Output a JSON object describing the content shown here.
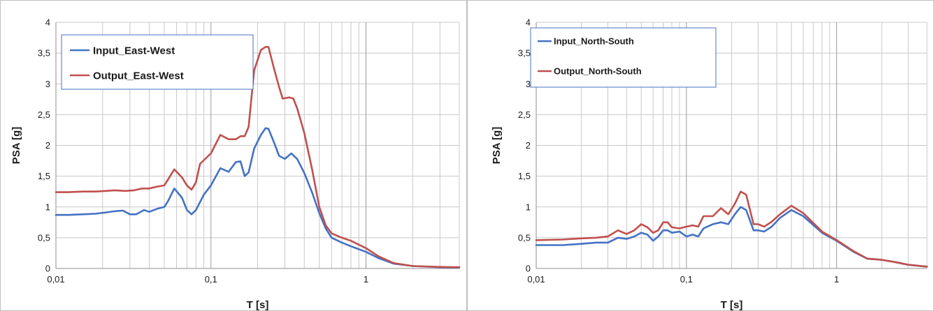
{
  "chart_data": [
    {
      "type": "line",
      "xlabel": "T [s]",
      "ylabel": "PSA [g]",
      "xscale": "log",
      "xlim": [
        0.01,
        4
      ],
      "ylim": [
        0,
        4
      ],
      "x_ticks": [
        {
          "value": 0.01,
          "label": "0,01"
        },
        {
          "value": 0.1,
          "label": "0,1"
        },
        {
          "value": 1,
          "label": "1"
        }
      ],
      "y_ticks": [
        {
          "value": 0,
          "label": "0"
        },
        {
          "value": 0.5,
          "label": "0,5"
        },
        {
          "value": 1,
          "label": "1"
        },
        {
          "value": 1.5,
          "label": "1,5"
        },
        {
          "value": 2,
          "label": "2"
        },
        {
          "value": 2.5,
          "label": "2,5"
        },
        {
          "value": 3,
          "label": "3"
        },
        {
          "value": 3.5,
          "label": "3,5"
        },
        {
          "value": 4,
          "label": "4"
        }
      ],
      "grid": true,
      "legend_position": "top-left",
      "series": [
        {
          "name": "Input_East-West",
          "color": "#4472c4",
          "points": [
            [
              0.01,
              0.87
            ],
            [
              0.012,
              0.87
            ],
            [
              0.015,
              0.88
            ],
            [
              0.018,
              0.89
            ],
            [
              0.021,
              0.91
            ],
            [
              0.024,
              0.93
            ],
            [
              0.027,
              0.94
            ],
            [
              0.03,
              0.88
            ],
            [
              0.033,
              0.88
            ],
            [
              0.037,
              0.95
            ],
            [
              0.04,
              0.92
            ],
            [
              0.045,
              0.97
            ],
            [
              0.05,
              1.0
            ],
            [
              0.053,
              1.1
            ],
            [
              0.058,
              1.3
            ],
            [
              0.065,
              1.15
            ],
            [
              0.07,
              0.95
            ],
            [
              0.075,
              0.88
            ],
            [
              0.08,
              0.95
            ],
            [
              0.09,
              1.2
            ],
            [
              0.1,
              1.35
            ],
            [
              0.115,
              1.63
            ],
            [
              0.13,
              1.57
            ],
            [
              0.145,
              1.73
            ],
            [
              0.155,
              1.74
            ],
            [
              0.165,
              1.5
            ],
            [
              0.175,
              1.56
            ],
            [
              0.19,
              1.95
            ],
            [
              0.21,
              2.17
            ],
            [
              0.225,
              2.28
            ],
            [
              0.235,
              2.27
            ],
            [
              0.255,
              2.05
            ],
            [
              0.275,
              1.83
            ],
            [
              0.3,
              1.78
            ],
            [
              0.33,
              1.87
            ],
            [
              0.36,
              1.78
            ],
            [
              0.4,
              1.55
            ],
            [
              0.45,
              1.23
            ],
            [
              0.5,
              0.9
            ],
            [
              0.55,
              0.65
            ],
            [
              0.6,
              0.5
            ],
            [
              0.7,
              0.42
            ],
            [
              0.8,
              0.36
            ],
            [
              1.0,
              0.27
            ],
            [
              1.2,
              0.17
            ],
            [
              1.5,
              0.08
            ],
            [
              2.0,
              0.04
            ],
            [
              3.0,
              0.02
            ],
            [
              4.0,
              0.015
            ]
          ]
        },
        {
          "name": "Output_East-West",
          "color": "#c0504d",
          "points": [
            [
              0.01,
              1.24
            ],
            [
              0.012,
              1.24
            ],
            [
              0.015,
              1.25
            ],
            [
              0.018,
              1.25
            ],
            [
              0.021,
              1.26
            ],
            [
              0.024,
              1.27
            ],
            [
              0.028,
              1.26
            ],
            [
              0.032,
              1.27
            ],
            [
              0.036,
              1.3
            ],
            [
              0.04,
              1.3
            ],
            [
              0.045,
              1.33
            ],
            [
              0.05,
              1.35
            ],
            [
              0.053,
              1.45
            ],
            [
              0.058,
              1.61
            ],
            [
              0.065,
              1.48
            ],
            [
              0.07,
              1.35
            ],
            [
              0.075,
              1.28
            ],
            [
              0.08,
              1.4
            ],
            [
              0.085,
              1.7
            ],
            [
              0.1,
              1.87
            ],
            [
              0.115,
              2.17
            ],
            [
              0.13,
              2.1
            ],
            [
              0.145,
              2.1
            ],
            [
              0.155,
              2.15
            ],
            [
              0.165,
              2.15
            ],
            [
              0.175,
              2.3
            ],
            [
              0.19,
              3.22
            ],
            [
              0.21,
              3.55
            ],
            [
              0.225,
              3.6
            ],
            [
              0.235,
              3.6
            ],
            [
              0.255,
              3.25
            ],
            [
              0.275,
              2.95
            ],
            [
              0.29,
              2.76
            ],
            [
              0.32,
              2.78
            ],
            [
              0.34,
              2.76
            ],
            [
              0.36,
              2.6
            ],
            [
              0.4,
              2.2
            ],
            [
              0.45,
              1.6
            ],
            [
              0.5,
              1.0
            ],
            [
              0.55,
              0.7
            ],
            [
              0.6,
              0.57
            ],
            [
              0.7,
              0.5
            ],
            [
              0.8,
              0.45
            ],
            [
              1.0,
              0.33
            ],
            [
              1.2,
              0.2
            ],
            [
              1.5,
              0.09
            ],
            [
              2.0,
              0.04
            ],
            [
              3.0,
              0.025
            ],
            [
              4.0,
              0.02
            ]
          ]
        }
      ]
    },
    {
      "type": "line",
      "xlabel": "T [s]",
      "ylabel": "PSA [g]",
      "xscale": "log",
      "xlim": [
        0.01,
        4
      ],
      "ylim": [
        0,
        4
      ],
      "x_ticks": [
        {
          "value": 0.01,
          "label": "0,01"
        },
        {
          "value": 0.1,
          "label": "0,1"
        },
        {
          "value": 1,
          "label": "1"
        }
      ],
      "y_ticks": [
        {
          "value": 0,
          "label": "0"
        },
        {
          "value": 0.5,
          "label": "0,5"
        },
        {
          "value": 1,
          "label": "1"
        },
        {
          "value": 1.5,
          "label": "1,5"
        },
        {
          "value": 2,
          "label": "2"
        },
        {
          "value": 2.5,
          "label": "2,5"
        },
        {
          "value": 3,
          "label": "3"
        },
        {
          "value": 3.5,
          "label": "3,5"
        },
        {
          "value": 4,
          "label": "4"
        }
      ],
      "grid": true,
      "legend_position": "top-left",
      "series": [
        {
          "name": "Input_North-South",
          "color": "#4472c4",
          "points": [
            [
              0.01,
              0.38
            ],
            [
              0.015,
              0.38
            ],
            [
              0.02,
              0.4
            ],
            [
              0.025,
              0.42
            ],
            [
              0.03,
              0.42
            ],
            [
              0.035,
              0.5
            ],
            [
              0.04,
              0.48
            ],
            [
              0.045,
              0.52
            ],
            [
              0.05,
              0.58
            ],
            [
              0.055,
              0.55
            ],
            [
              0.06,
              0.45
            ],
            [
              0.065,
              0.52
            ],
            [
              0.07,
              0.62
            ],
            [
              0.075,
              0.62
            ],
            [
              0.08,
              0.58
            ],
            [
              0.09,
              0.6
            ],
            [
              0.1,
              0.52
            ],
            [
              0.11,
              0.55
            ],
            [
              0.12,
              0.52
            ],
            [
              0.13,
              0.65
            ],
            [
              0.15,
              0.72
            ],
            [
              0.17,
              0.75
            ],
            [
              0.19,
              0.72
            ],
            [
              0.21,
              0.88
            ],
            [
              0.23,
              1.0
            ],
            [
              0.25,
              0.95
            ],
            [
              0.28,
              0.62
            ],
            [
              0.3,
              0.62
            ],
            [
              0.33,
              0.6
            ],
            [
              0.37,
              0.68
            ],
            [
              0.42,
              0.82
            ],
            [
              0.5,
              0.95
            ],
            [
              0.6,
              0.85
            ],
            [
              0.8,
              0.58
            ],
            [
              1.0,
              0.45
            ],
            [
              1.3,
              0.27
            ],
            [
              1.6,
              0.16
            ],
            [
              2.0,
              0.14
            ],
            [
              2.5,
              0.1
            ],
            [
              3.0,
              0.06
            ],
            [
              4.0,
              0.03
            ]
          ]
        },
        {
          "name": "Output_North-South",
          "color": "#c0504d",
          "points": [
            [
              0.01,
              0.46
            ],
            [
              0.015,
              0.47
            ],
            [
              0.02,
              0.49
            ],
            [
              0.025,
              0.5
            ],
            [
              0.03,
              0.52
            ],
            [
              0.035,
              0.62
            ],
            [
              0.04,
              0.56
            ],
            [
              0.045,
              0.62
            ],
            [
              0.05,
              0.72
            ],
            [
              0.055,
              0.67
            ],
            [
              0.06,
              0.58
            ],
            [
              0.065,
              0.62
            ],
            [
              0.07,
              0.75
            ],
            [
              0.075,
              0.75
            ],
            [
              0.08,
              0.67
            ],
            [
              0.09,
              0.65
            ],
            [
              0.1,
              0.68
            ],
            [
              0.11,
              0.7
            ],
            [
              0.12,
              0.68
            ],
            [
              0.13,
              0.85
            ],
            [
              0.15,
              0.85
            ],
            [
              0.17,
              0.98
            ],
            [
              0.19,
              0.88
            ],
            [
              0.21,
              1.05
            ],
            [
              0.23,
              1.25
            ],
            [
              0.25,
              1.2
            ],
            [
              0.28,
              0.72
            ],
            [
              0.3,
              0.72
            ],
            [
              0.33,
              0.68
            ],
            [
              0.37,
              0.76
            ],
            [
              0.42,
              0.88
            ],
            [
              0.5,
              1.02
            ],
            [
              0.6,
              0.9
            ],
            [
              0.8,
              0.6
            ],
            [
              1.0,
              0.46
            ],
            [
              1.3,
              0.28
            ],
            [
              1.6,
              0.16
            ],
            [
              2.0,
              0.14
            ],
            [
              2.5,
              0.1
            ],
            [
              3.0,
              0.06
            ],
            [
              4.0,
              0.03
            ]
          ]
        }
      ]
    }
  ]
}
